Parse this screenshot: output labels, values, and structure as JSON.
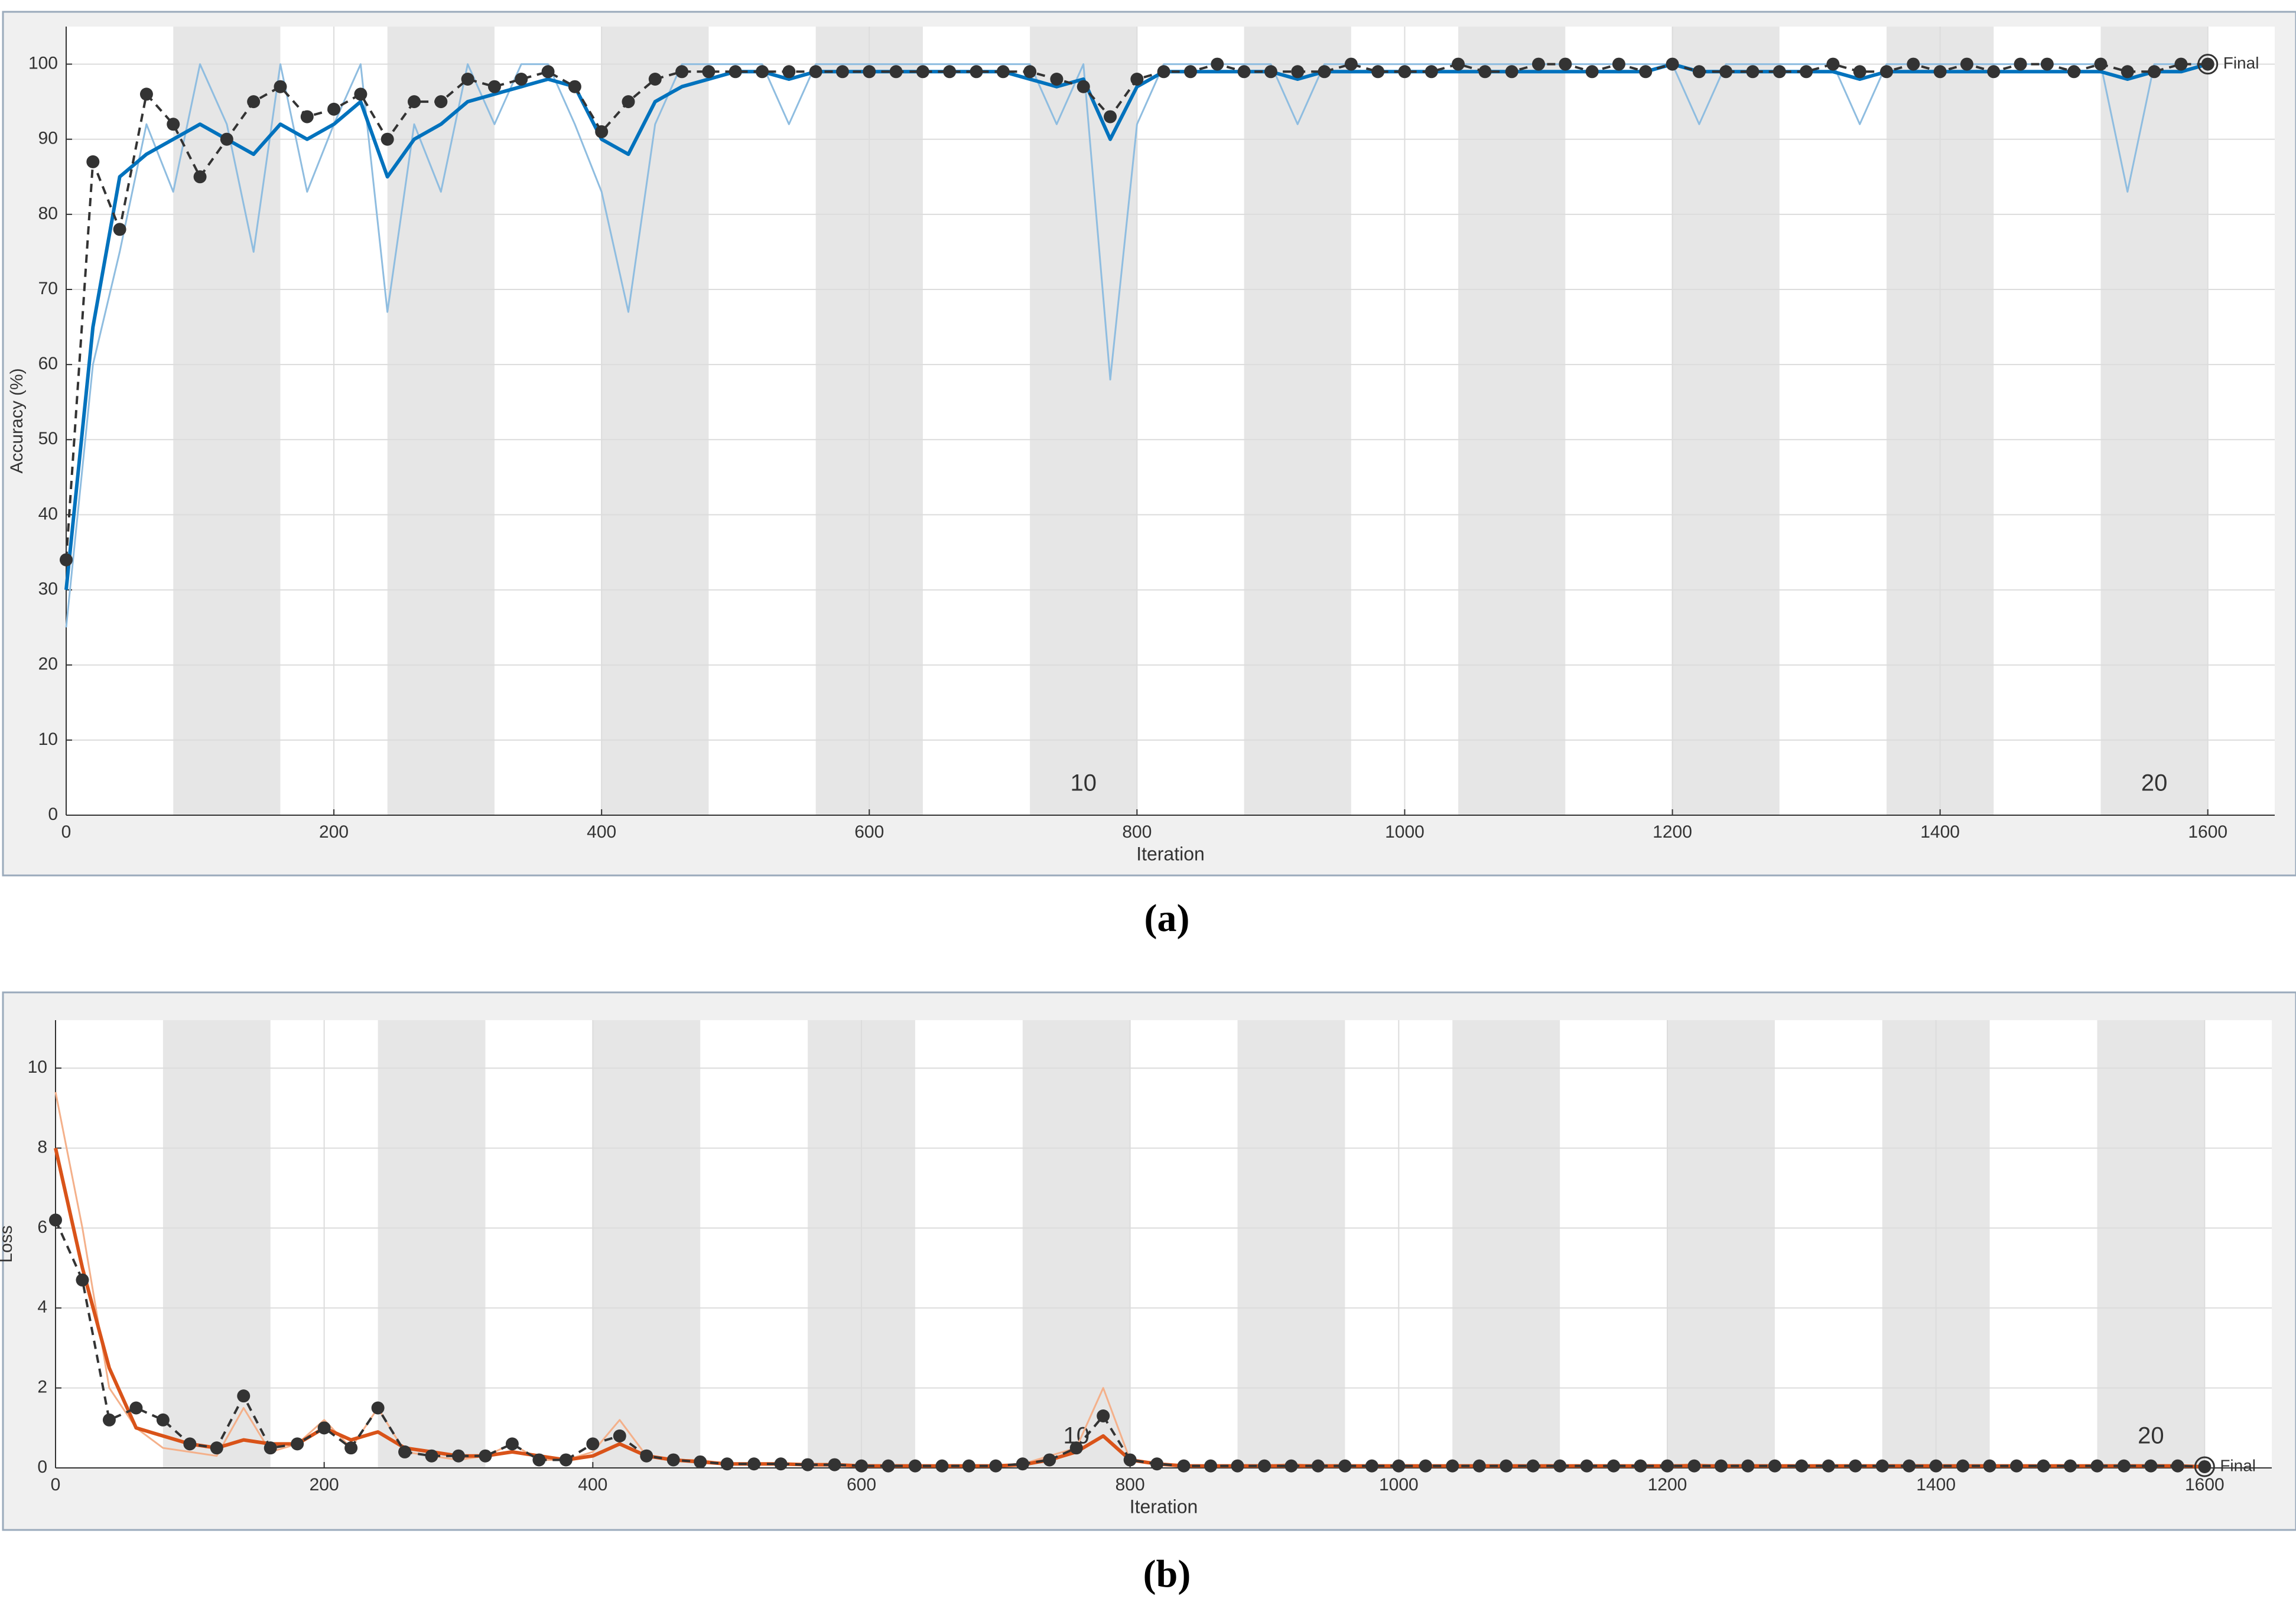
{
  "chart_data": [
    {
      "type": "line",
      "caption": "(a)",
      "xlabel": "Iteration",
      "ylabel": "Accuracy (%)",
      "xlim": [
        0,
        1650
      ],
      "ylim": [
        0,
        105
      ],
      "xticks": [
        0,
        200,
        400,
        600,
        800,
        1000,
        1200,
        1400,
        1600
      ],
      "yticks": [
        0,
        10,
        20,
        30,
        40,
        50,
        60,
        70,
        80,
        90,
        100
      ],
      "grid": true,
      "epoch_length": 80,
      "epoch_labels": [
        10,
        20
      ],
      "final_label": "Final",
      "x": [
        0,
        20,
        40,
        60,
        80,
        100,
        120,
        140,
        160,
        180,
        200,
        220,
        240,
        260,
        280,
        300,
        320,
        340,
        360,
        380,
        400,
        420,
        440,
        460,
        480,
        500,
        520,
        540,
        560,
        580,
        600,
        620,
        640,
        660,
        680,
        700,
        720,
        740,
        760,
        780,
        800,
        820,
        840,
        860,
        880,
        900,
        920,
        940,
        960,
        980,
        1000,
        1020,
        1040,
        1060,
        1080,
        1100,
        1120,
        1140,
        1160,
        1180,
        1200,
        1220,
        1240,
        1260,
        1280,
        1300,
        1320,
        1340,
        1360,
        1380,
        1400,
        1420,
        1440,
        1460,
        1480,
        1500,
        1520,
        1540,
        1560,
        1580,
        1600
      ],
      "series": [
        {
          "color": "#8fbde0",
          "width": 3,
          "values": [
            25,
            60,
            75,
            92,
            83,
            100,
            92,
            75,
            100,
            83,
            92,
            100,
            67,
            92,
            83,
            100,
            92,
            100,
            100,
            92,
            83,
            67,
            92,
            100,
            100,
            100,
            100,
            92,
            100,
            100,
            100,
            100,
            100,
            100,
            100,
            100,
            100,
            92,
            100,
            58,
            92,
            100,
            100,
            100,
            100,
            100,
            92,
            100,
            100,
            100,
            100,
            100,
            100,
            100,
            100,
            100,
            100,
            100,
            100,
            100,
            100,
            92,
            100,
            100,
            100,
            100,
            100,
            92,
            100,
            100,
            100,
            100,
            100,
            100,
            100,
            100,
            100,
            83,
            100,
            100,
            100
          ]
        },
        {
          "color": "#0072bd",
          "width": 6,
          "values": [
            30,
            65,
            85,
            88,
            90,
            92,
            90,
            88,
            92,
            90,
            92,
            95,
            85,
            90,
            92,
            95,
            96,
            97,
            98,
            97,
            90,
            88,
            95,
            97,
            98,
            99,
            99,
            98,
            99,
            99,
            99,
            99,
            99,
            99,
            99,
            99,
            98,
            97,
            98,
            90,
            97,
            99,
            99,
            99,
            99,
            99,
            98,
            99,
            99,
            99,
            99,
            99,
            99,
            99,
            99,
            99,
            99,
            99,
            99,
            99,
            100,
            99,
            99,
            99,
            99,
            99,
            99,
            98,
            99,
            99,
            99,
            99,
            99,
            99,
            99,
            99,
            99,
            98,
            99,
            99,
            100
          ]
        },
        {
          "color": "#333333",
          "width": 4,
          "dashed": true,
          "markers": true,
          "values": [
            34,
            87,
            78,
            96,
            92,
            85,
            90,
            95,
            97,
            93,
            94,
            96,
            90,
            95,
            95,
            98,
            97,
            98,
            99,
            97,
            91,
            95,
            98,
            99,
            99,
            99,
            99,
            99,
            99,
            99,
            99,
            99,
            99,
            99,
            99,
            99,
            99,
            98,
            97,
            93,
            98,
            99,
            99,
            100,
            99,
            99,
            99,
            99,
            100,
            99,
            99,
            99,
            100,
            99,
            99,
            100,
            100,
            99,
            100,
            99,
            100,
            99,
            99,
            99,
            99,
            99,
            100,
            99,
            99,
            100,
            99,
            100,
            99,
            100,
            100,
            99,
            100,
            99,
            99,
            100,
            100
          ]
        }
      ]
    },
    {
      "type": "line",
      "caption": "(b)",
      "xlabel": "Iteration",
      "ylabel": "Loss",
      "xlim": [
        0,
        1650
      ],
      "ylim": [
        0,
        11.2
      ],
      "xticks": [
        0,
        200,
        400,
        600,
        800,
        1000,
        1200,
        1400,
        1600
      ],
      "yticks": [
        0,
        2,
        4,
        6,
        8,
        10
      ],
      "grid": true,
      "epoch_length": 80,
      "epoch_labels": [
        10,
        20
      ],
      "final_label": "Final",
      "x": [
        0,
        20,
        40,
        60,
        80,
        100,
        120,
        140,
        160,
        180,
        200,
        220,
        240,
        260,
        280,
        300,
        320,
        340,
        360,
        380,
        400,
        420,
        440,
        460,
        480,
        500,
        520,
        540,
        560,
        580,
        600,
        620,
        640,
        660,
        680,
        700,
        720,
        740,
        760,
        780,
        800,
        820,
        840,
        860,
        880,
        900,
        920,
        940,
        960,
        980,
        1000,
        1020,
        1040,
        1060,
        1080,
        1100,
        1120,
        1140,
        1160,
        1180,
        1200,
        1220,
        1240,
        1260,
        1280,
        1300,
        1320,
        1340,
        1360,
        1380,
        1400,
        1420,
        1440,
        1460,
        1480,
        1500,
        1520,
        1540,
        1560,
        1580,
        1600
      ],
      "series": [
        {
          "color": "#f4b08a",
          "width": 3,
          "values": [
            9.4,
            6,
            2,
            1,
            0.5,
            0.4,
            0.3,
            1.5,
            0.4,
            0.6,
            1.2,
            0.5,
            1.5,
            0.4,
            0.3,
            0.2,
            0.3,
            0.6,
            0.2,
            0.2,
            0.4,
            1.2,
            0.3,
            0.2,
            0.2,
            0.1,
            0.1,
            0.1,
            0.1,
            0.1,
            0.05,
            0.05,
            0.05,
            0.05,
            0.05,
            0.05,
            0.1,
            0.3,
            0.5,
            2,
            0.2,
            0.1,
            0.05,
            0.05,
            0.05,
            0.05,
            0.1,
            0.05,
            0.05,
            0.05,
            0.05,
            0.05,
            0.05,
            0.05,
            0.05,
            0.05,
            0.05,
            0.05,
            0.05,
            0.05,
            0.05,
            0.1,
            0.05,
            0.05,
            0.05,
            0.05,
            0.05,
            0.05,
            0.05,
            0.05,
            0.05,
            0.05,
            0.05,
            0.05,
            0.05,
            0.05,
            0.05,
            0.05,
            0.05,
            0.05,
            0.02
          ]
        },
        {
          "color": "#d95319",
          "width": 6,
          "values": [
            8,
            5,
            2.5,
            1,
            0.8,
            0.6,
            0.5,
            0.7,
            0.6,
            0.6,
            1,
            0.7,
            0.9,
            0.5,
            0.4,
            0.3,
            0.3,
            0.4,
            0.3,
            0.2,
            0.3,
            0.6,
            0.3,
            0.2,
            0.15,
            0.1,
            0.1,
            0.1,
            0.08,
            0.08,
            0.05,
            0.05,
            0.05,
            0.05,
            0.05,
            0.05,
            0.08,
            0.2,
            0.4,
            0.8,
            0.2,
            0.1,
            0.05,
            0.05,
            0.05,
            0.05,
            0.05,
            0.05,
            0.05,
            0.05,
            0.05,
            0.05,
            0.05,
            0.05,
            0.05,
            0.05,
            0.05,
            0.05,
            0.05,
            0.05,
            0.05,
            0.05,
            0.05,
            0.05,
            0.05,
            0.05,
            0.05,
            0.05,
            0.05,
            0.05,
            0.05,
            0.05,
            0.05,
            0.05,
            0.05,
            0.05,
            0.05,
            0.05,
            0.05,
            0.05,
            0.03
          ]
        },
        {
          "color": "#333333",
          "width": 4,
          "dashed": true,
          "markers": true,
          "values": [
            6.2,
            4.7,
            1.2,
            1.5,
            1.2,
            0.6,
            0.5,
            1.8,
            0.5,
            0.6,
            1,
            0.5,
            1.5,
            0.4,
            0.3,
            0.3,
            0.3,
            0.6,
            0.2,
            0.2,
            0.6,
            0.8,
            0.3,
            0.2,
            0.15,
            0.1,
            0.1,
            0.1,
            0.08,
            0.08,
            0.05,
            0.05,
            0.05,
            0.05,
            0.05,
            0.05,
            0.1,
            0.2,
            0.5,
            1.3,
            0.2,
            0.1,
            0.05,
            0.05,
            0.05,
            0.05,
            0.05,
            0.05,
            0.05,
            0.05,
            0.05,
            0.05,
            0.05,
            0.05,
            0.05,
            0.05,
            0.05,
            0.05,
            0.05,
            0.05,
            0.05,
            0.05,
            0.05,
            0.05,
            0.05,
            0.05,
            0.05,
            0.05,
            0.05,
            0.05,
            0.05,
            0.05,
            0.05,
            0.05,
            0.05,
            0.05,
            0.05,
            0.05,
            0.05,
            0.05,
            0.03
          ]
        }
      ]
    }
  ]
}
